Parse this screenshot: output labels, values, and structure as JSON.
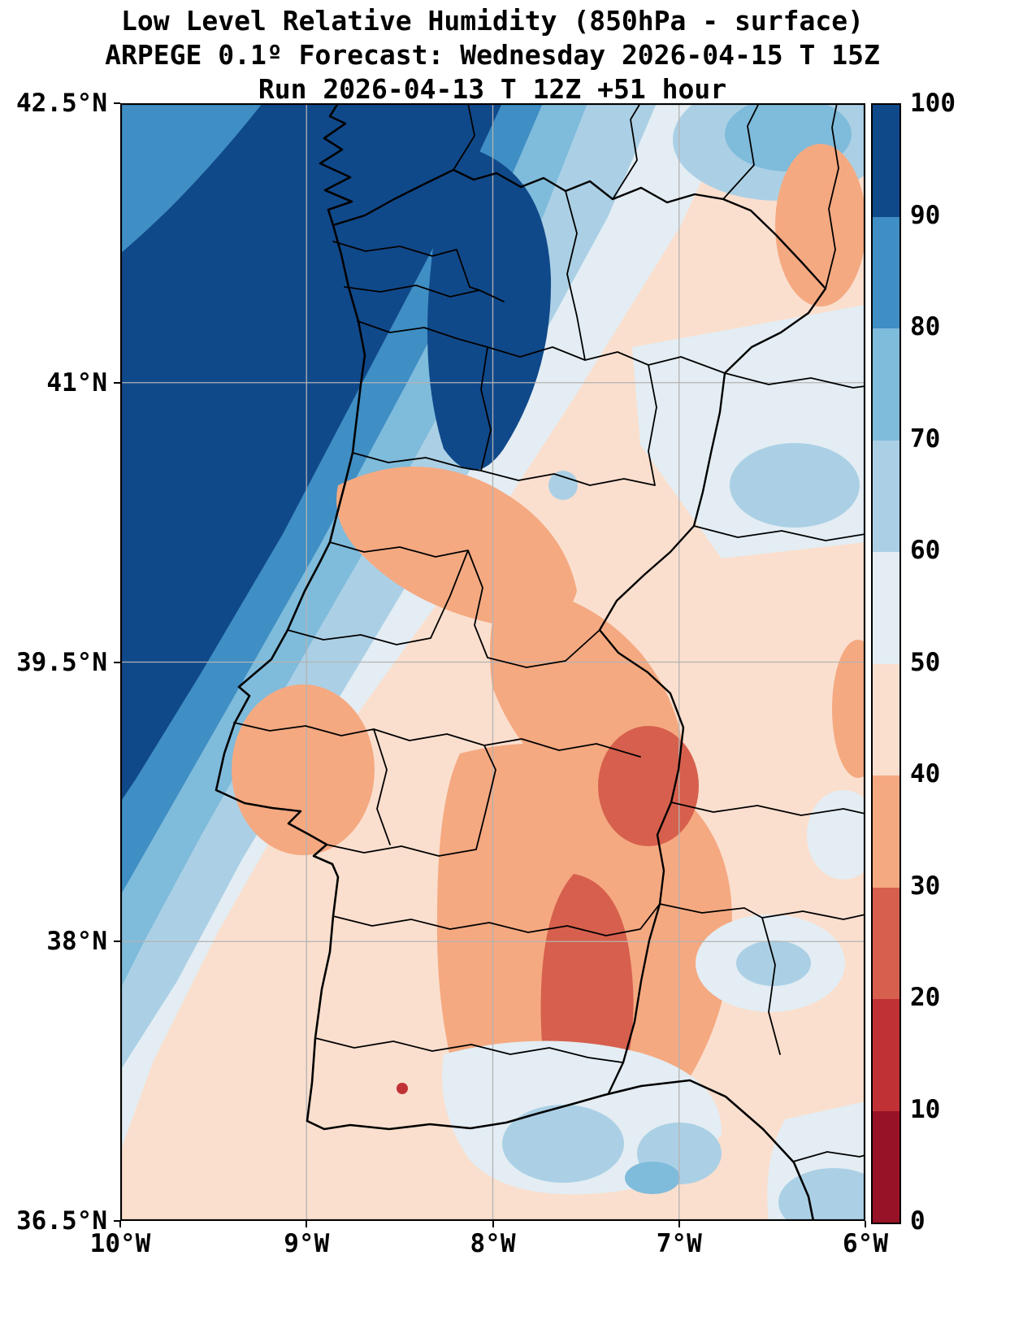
{
  "header": {
    "title_line1": "Low Level Relative Humidity (850hPa - surface)",
    "title_line2": "ARPEGE 0.1º Forecast: Wednesday 2026-04-15 T 15Z",
    "title_line3": "Run 2026-04-13 T 12Z +51 hour"
  },
  "axes": {
    "lon_range": [
      -10,
      -6
    ],
    "lat_range": [
      36.5,
      42.5
    ],
    "x_ticks": [
      {
        "label": "10°W",
        "lon": -10
      },
      {
        "label": "9°W",
        "lon": -9
      },
      {
        "label": "8°W",
        "lon": -8
      },
      {
        "label": "7°W",
        "lon": -7
      },
      {
        "label": "6°W",
        "lon": -6
      }
    ],
    "y_ticks": [
      {
        "label": "42.5°N",
        "lat": 42.5
      },
      {
        "label": "41°N",
        "lat": 41
      },
      {
        "label": "39.5°N",
        "lat": 39.5
      },
      {
        "label": "38°N",
        "lat": 38
      },
      {
        "label": "36.5°N",
        "lat": 36.5
      }
    ],
    "gridline_color": "#b3b3b3"
  },
  "colorbar": {
    "min": 0,
    "max": 100,
    "ticks": [
      {
        "value": 0,
        "label": "0"
      },
      {
        "value": 10,
        "label": "10"
      },
      {
        "value": 20,
        "label": "20"
      },
      {
        "value": 30,
        "label": "30"
      },
      {
        "value": 40,
        "label": "40"
      },
      {
        "value": 50,
        "label": "50"
      },
      {
        "value": 60,
        "label": "60"
      },
      {
        "value": 70,
        "label": "70"
      },
      {
        "value": 80,
        "label": "80"
      },
      {
        "value": 90,
        "label": "90"
      },
      {
        "value": 100,
        "label": "100"
      }
    ],
    "bands": [
      {
        "from": 0,
        "to": 10,
        "color": "#971226"
      },
      {
        "from": 10,
        "to": 20,
        "color": "#c03136"
      },
      {
        "from": 20,
        "to": 30,
        "color": "#d6604d"
      },
      {
        "from": 30,
        "to": 40,
        "color": "#f5a981"
      },
      {
        "from": 40,
        "to": 50,
        "color": "#fadfce"
      },
      {
        "from": 50,
        "to": 60,
        "color": "#e3edf3"
      },
      {
        "from": 60,
        "to": 70,
        "color": "#abd0e5"
      },
      {
        "from": 70,
        "to": 80,
        "color": "#7fbbdb"
      },
      {
        "from": 80,
        "to": 90,
        "color": "#3f8ec4"
      },
      {
        "from": 90,
        "to": 100,
        "color": "#10498a"
      }
    ]
  },
  "chart_data": {
    "type": "heatmap",
    "title": "Low Level Relative Humidity (850hPa - surface)",
    "subtitle": "ARPEGE 0.1º Forecast: Wednesday 2026-04-15 T 15Z",
    "run_line": "Run 2026-04-13 T 12Z +51 hour",
    "model": "ARPEGE 0.1º",
    "valid_time": "Wednesday 2026-04-15 T 15Z",
    "run_time": "2026-04-13 T 12Z",
    "lead_hours": 51,
    "variable": "relative humidity, 850hPa minus surface layer",
    "units": "%",
    "colormap": "RdBu discrete, 10 bands (red = dry, blue = moist)",
    "levels": [
      0,
      10,
      20,
      30,
      40,
      50,
      60,
      70,
      80,
      90,
      100
    ],
    "lon_range": [
      -10,
      -6
    ],
    "lat_range": [
      36.5,
      42.5
    ],
    "x_tick_labels": [
      "10°W",
      "9°W",
      "8°W",
      "7°W",
      "6°W"
    ],
    "y_tick_labels": [
      "42.5°N",
      "41°N",
      "39.5°N",
      "38°N",
      "36.5°N"
    ],
    "grid": true,
    "legend_position": "right colorbar",
    "region": "Portugal and western Spain",
    "approx_values": [
      {
        "region": "Atlantic off NW coast (Galicia / Minho)",
        "rh": "90-100"
      },
      {
        "region": "Minho and Porto coastal land",
        "rh": "80-100"
      },
      {
        "region": "Beira Litoral coastline",
        "rh": "60-80"
      },
      {
        "region": "Northeast interior (Trás-os-Montes / Zamora)",
        "rh": "40-60"
      },
      {
        "region": "Central interior band (Viseu-Guarda toward Tejo)",
        "rh": "30-40"
      },
      {
        "region": "Lisbon / Santarém area",
        "rh": "30-50"
      },
      {
        "region": "Alentejo and Spanish Extremadura (Badajoz)",
        "rh": "20-40"
      },
      {
        "region": "South-central Alentejo dry core",
        "rh": "20-30"
      },
      {
        "region": "Algarve south coast / Gulf of Cadiz",
        "rh": "50-70"
      },
      {
        "region": "Southwest Atlantic corner",
        "rh": "40-60"
      },
      {
        "region": "Upper-right Spain (Zamora/Salamanca plateau)",
        "rh": "30-50"
      }
    ]
  }
}
